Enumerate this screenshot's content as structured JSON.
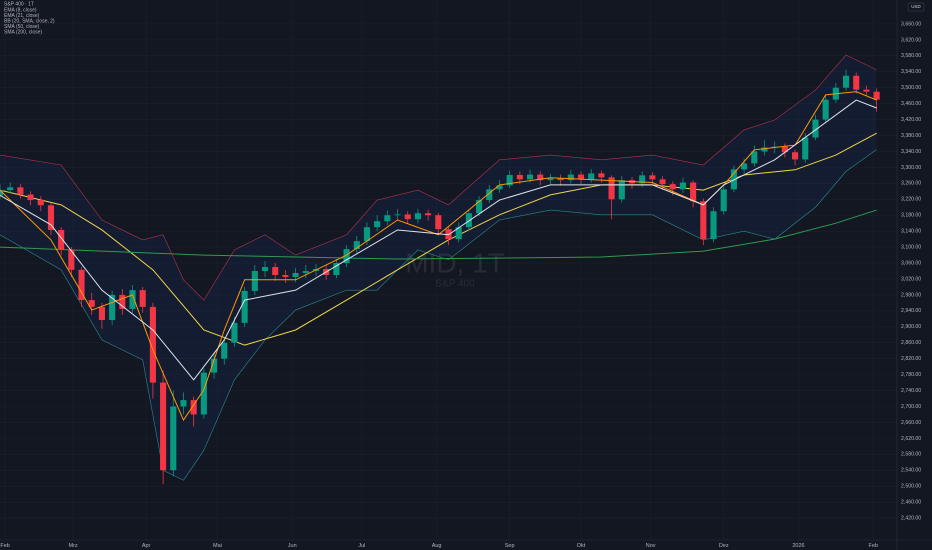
{
  "chart_data": {
    "type": "candlestick",
    "title": "S&P 400 · 1T",
    "watermark": "MID, 1T",
    "watermark_subtitle": "S&P 400",
    "currency": "USD",
    "up_color": "#089981",
    "down_color": "#f23645",
    "grid": true,
    "xlim": [
      0,
      264
    ],
    "xticks": [
      {
        "value": 1.5,
        "label": "Feb"
      },
      {
        "value": 21.5,
        "label": "Mrz"
      },
      {
        "value": 43,
        "label": "Apr"
      },
      {
        "value": 64,
        "label": "Mai"
      },
      {
        "value": 86,
        "label": "Jun"
      },
      {
        "value": 106.5,
        "label": "Jul"
      },
      {
        "value": 128.5,
        "label": "Aug"
      },
      {
        "value": 150,
        "label": "Sep"
      },
      {
        "value": 171,
        "label": "Okt"
      },
      {
        "value": 191.5,
        "label": "Nov"
      },
      {
        "value": 213,
        "label": "Dez"
      },
      {
        "value": 235,
        "label": "2026"
      },
      {
        "value": 257,
        "label": "Feb"
      }
    ],
    "ylim": [
      2365,
      3700
    ],
    "yticks": [
      {
        "value": 2420,
        "label": "2,420.00"
      },
      {
        "value": 2460,
        "label": "2,460.00"
      },
      {
        "value": 2500,
        "label": "2,500.00"
      },
      {
        "value": 2540,
        "label": "2,540.00"
      },
      {
        "value": 2580,
        "label": "2,580.00"
      },
      {
        "value": 2620,
        "label": "2,620.00"
      },
      {
        "value": 2660,
        "label": "2,660.00"
      },
      {
        "value": 2700,
        "label": "2,700.00"
      },
      {
        "value": 2740,
        "label": "2,740.00"
      },
      {
        "value": 2780,
        "label": "2,780.00"
      },
      {
        "value": 2820,
        "label": "2,820.00"
      },
      {
        "value": 2860,
        "label": "2,860.00"
      },
      {
        "value": 2900,
        "label": "2,900.00"
      },
      {
        "value": 2940,
        "label": "2,940.00"
      },
      {
        "value": 2980,
        "label": "2,980.00"
      },
      {
        "value": 3020,
        "label": "3,020.00"
      },
      {
        "value": 3060,
        "label": "3,060.00"
      },
      {
        "value": 3100,
        "label": "3,100.00"
      },
      {
        "value": 3140,
        "label": "3,140.00"
      },
      {
        "value": 3180,
        "label": "3,180.00"
      },
      {
        "value": 3220,
        "label": "3,220.00"
      },
      {
        "value": 3260,
        "label": "3,260.00"
      },
      {
        "value": 3300,
        "label": "3,300.00"
      },
      {
        "value": 3340,
        "label": "3,340.00"
      },
      {
        "value": 3380,
        "label": "3,380.00"
      },
      {
        "value": 3420,
        "label": "3,420.00"
      },
      {
        "value": 3460,
        "label": "3,460.00"
      },
      {
        "value": 3500,
        "label": "3,500.00"
      },
      {
        "value": 3540,
        "label": "3,540.00"
      },
      {
        "value": 3580,
        "label": "3,580.00"
      },
      {
        "value": 3620,
        "label": "3,620.00"
      },
      {
        "value": 3660,
        "label": "3,660.00"
      }
    ],
    "x": [
      0,
      3,
      6,
      9,
      12,
      15,
      18,
      21,
      24,
      27,
      30,
      33,
      36,
      39,
      42,
      45,
      48,
      51,
      54,
      57,
      60,
      63,
      66,
      69,
      72,
      75,
      78,
      81,
      84,
      87,
      90,
      93,
      96,
      99,
      102,
      105,
      108,
      111,
      114,
      117,
      120,
      123,
      126,
      129,
      132,
      135,
      138,
      141,
      144,
      147,
      150,
      153,
      156,
      159,
      162,
      165,
      168,
      171,
      174,
      177,
      180,
      183,
      186,
      189,
      192,
      195,
      198,
      201,
      204,
      207,
      210,
      213,
      216,
      219,
      222,
      225,
      228,
      231,
      234,
      237,
      240,
      243,
      246,
      249,
      252,
      255,
      258
    ],
    "open": [
      3230,
      3243,
      3250,
      3232,
      3218,
      3205,
      3143,
      3093,
      3043,
      2967,
      2950,
      2917,
      2980,
      2945,
      2992,
      2950,
      2760,
      2540,
      2700,
      2716,
      2680,
      2785,
      2820,
      2860,
      2910,
      2990,
      3040,
      3050,
      3030,
      3025,
      3035,
      3040,
      3045,
      3030,
      3060,
      3095,
      3115,
      3150,
      3165,
      3180,
      3182,
      3170,
      3185,
      3180,
      3145,
      3120,
      3150,
      3185,
      3218,
      3245,
      3255,
      3281,
      3270,
      3282,
      3268,
      3272,
      3268,
      3282,
      3270,
      3285,
      3275,
      3220,
      3268,
      3260,
      3280,
      3270,
      3258,
      3245,
      3262,
      3215,
      3120,
      3190,
      3245,
      3295,
      3310,
      3340,
      3350,
      3352,
      3338,
      3320,
      3375,
      3420,
      3470,
      3500,
      3530,
      3495,
      3490
    ],
    "high": [
      3258,
      3262,
      3258,
      3240,
      3228,
      3210,
      3150,
      3100,
      3050,
      2985,
      2960,
      2990,
      2995,
      3005,
      3000,
      2960,
      2790,
      2740,
      2735,
      2725,
      2795,
      2835,
      2870,
      2925,
      3000,
      3055,
      3065,
      3060,
      3042,
      3048,
      3055,
      3058,
      3055,
      3070,
      3105,
      3128,
      3162,
      3180,
      3192,
      3195,
      3190,
      3196,
      3194,
      3186,
      3152,
      3162,
      3195,
      3228,
      3256,
      3268,
      3292,
      3290,
      3294,
      3290,
      3284,
      3282,
      3294,
      3290,
      3296,
      3292,
      3280,
      3278,
      3276,
      3290,
      3288,
      3278,
      3265,
      3274,
      3268,
      3222,
      3200,
      3255,
      3305,
      3322,
      3355,
      3368,
      3365,
      3360,
      3345,
      3386,
      3432,
      3482,
      3512,
      3545,
      3538,
      3505,
      3498
    ],
    "low": [
      3220,
      3235,
      3222,
      3205,
      3190,
      3130,
      3080,
      3025,
      2950,
      2930,
      2895,
      2905,
      2930,
      2935,
      2935,
      2720,
      2505,
      2525,
      2680,
      2650,
      2670,
      2770,
      2805,
      2850,
      2900,
      2980,
      3025,
      3015,
      3010,
      3012,
      3022,
      3028,
      3018,
      3022,
      3050,
      3085,
      3105,
      3140,
      3155,
      3168,
      3158,
      3160,
      3166,
      3132,
      3105,
      3112,
      3142,
      3178,
      3210,
      3236,
      3248,
      3258,
      3262,
      3255,
      3258,
      3254,
      3260,
      3258,
      3262,
      3262,
      3170,
      3212,
      3246,
      3250,
      3256,
      3244,
      3230,
      3236,
      3200,
      3105,
      3112,
      3182,
      3238,
      3285,
      3302,
      3330,
      3336,
      3325,
      3305,
      3312,
      3368,
      3412,
      3462,
      3492,
      3485,
      3478,
      3440
    ],
    "close": [
      3243,
      3250,
      3232,
      3218,
      3205,
      3143,
      3093,
      3043,
      2967,
      2950,
      2917,
      2980,
      2945,
      2992,
      2950,
      2760,
      2540,
      2700,
      2716,
      2680,
      2785,
      2820,
      2860,
      2910,
      2990,
      3040,
      3050,
      3030,
      3025,
      3035,
      3040,
      3045,
      3030,
      3060,
      3095,
      3115,
      3150,
      3165,
      3180,
      3182,
      3170,
      3185,
      3180,
      3145,
      3120,
      3150,
      3185,
      3218,
      3245,
      3255,
      3281,
      3270,
      3282,
      3268,
      3272,
      3268,
      3282,
      3270,
      3285,
      3275,
      3220,
      3268,
      3260,
      3280,
      3270,
      3258,
      3245,
      3262,
      3215,
      3120,
      3190,
      3245,
      3295,
      3310,
      3340,
      3350,
      3352,
      3338,
      3320,
      3375,
      3420,
      3470,
      3500,
      3530,
      3495,
      3490,
      3470
    ],
    "band": {
      "name": "BB (20, SMA, close, 2)",
      "upper_color": "#b2344d",
      "lower_color": "#2b8a8f",
      "fill": "#2962ff",
      "x": [
        0,
        18,
        30,
        42,
        48,
        54,
        60,
        69,
        78,
        87,
        102,
        111,
        123,
        132,
        147,
        162,
        177,
        192,
        207,
        219,
        228,
        240,
        249,
        258
      ],
      "upper": [
        3331,
        3306,
        3168,
        3118,
        3131,
        3018,
        2967,
        3093,
        3131,
        3080,
        3131,
        3218,
        3243,
        3206,
        3319,
        3331,
        3319,
        3331,
        3306,
        3394,
        3419,
        3494,
        3582,
        3545
      ],
      "lower": [
        3131,
        3043,
        2867,
        2817,
        2540,
        2515,
        2590,
        2767,
        2867,
        2942,
        2992,
        2992,
        3093,
        3068,
        3168,
        3193,
        3181,
        3181,
        3118,
        3140,
        3120,
        3200,
        3290,
        3345
      ]
    },
    "series": [
      {
        "name": "EMA (8, close)",
        "color": "#ff9800",
        "x": [
          0,
          15,
          27,
          39,
          45,
          54,
          60,
          66,
          72,
          87,
          102,
          117,
          129,
          147,
          162,
          177,
          192,
          207,
          213,
          222,
          234,
          243,
          252,
          258
        ],
        "values": [
          3243,
          3118,
          2942,
          2980,
          2842,
          2666,
          2742,
          2892,
          3018,
          3018,
          3080,
          3168,
          3131,
          3256,
          3274,
          3268,
          3262,
          3206,
          3256,
          3344,
          3356,
          3482,
          3490,
          3469
        ]
      },
      {
        "name": "EMA (21, close)",
        "color": "#e0e3eb",
        "x": [
          0,
          15,
          30,
          45,
          57,
          66,
          72,
          87,
          102,
          117,
          132,
          147,
          162,
          177,
          192,
          207,
          213,
          228,
          240,
          252,
          258
        ],
        "values": [
          3230,
          3156,
          2992,
          2892,
          2767,
          2867,
          2967,
          2992,
          3068,
          3143,
          3131,
          3218,
          3256,
          3256,
          3256,
          3206,
          3256,
          3319,
          3394,
          3469,
          3449
        ]
      },
      {
        "name": "SMA (50, close)",
        "color": "#f0d54a",
        "x": [
          0,
          18,
          30,
          45,
          60,
          72,
          87,
          102,
          117,
          132,
          147,
          162,
          177,
          192,
          207,
          219,
          234,
          246,
          258
        ],
        "values": [
          3243,
          3206,
          3143,
          3043,
          2892,
          2854,
          2892,
          2967,
          3043,
          3118,
          3181,
          3231,
          3256,
          3256,
          3243,
          3281,
          3294,
          3331,
          3386
        ]
      },
      {
        "name": "SMA (200, close)",
        "color": "#2e9c4f",
        "x": [
          0,
          60,
          117,
          177,
          207,
          228,
          246,
          258
        ],
        "values": [
          3100,
          3080,
          3070,
          3075,
          3090,
          3120,
          3160,
          3193
        ]
      }
    ]
  }
}
